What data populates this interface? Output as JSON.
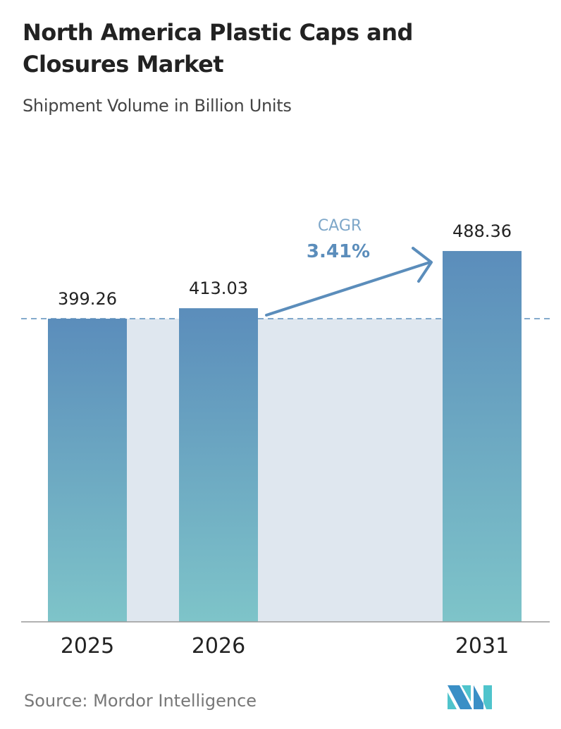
{
  "title": "North America Plastic Caps and Closures Market",
  "subtitle": "Shipment Volume in Billion Units",
  "source": "Source:  Mordor Intelligence",
  "logo_text": "MI",
  "colors": {
    "bar_top": "#5b8dbb",
    "bar_bottom": "#7ec4c9",
    "fill_area": "#dfe7ef",
    "arrow": "#5b8dbb",
    "dash": "#5b8dbb"
  },
  "chart_data": {
    "type": "bar",
    "categories": [
      "2025",
      "2026",
      "2031"
    ],
    "values": [
      399.26,
      413.03,
      488.36
    ],
    "data_labels": [
      "399.26",
      "413.03",
      "488.36"
    ],
    "title": "North America Plastic Caps and Closures Market",
    "subtitle": "Shipment Volume in Billion Units",
    "annotation": {
      "label": "CAGR",
      "value": "3.41%"
    },
    "ylim": [
      0,
      500
    ],
    "grid": false
  }
}
